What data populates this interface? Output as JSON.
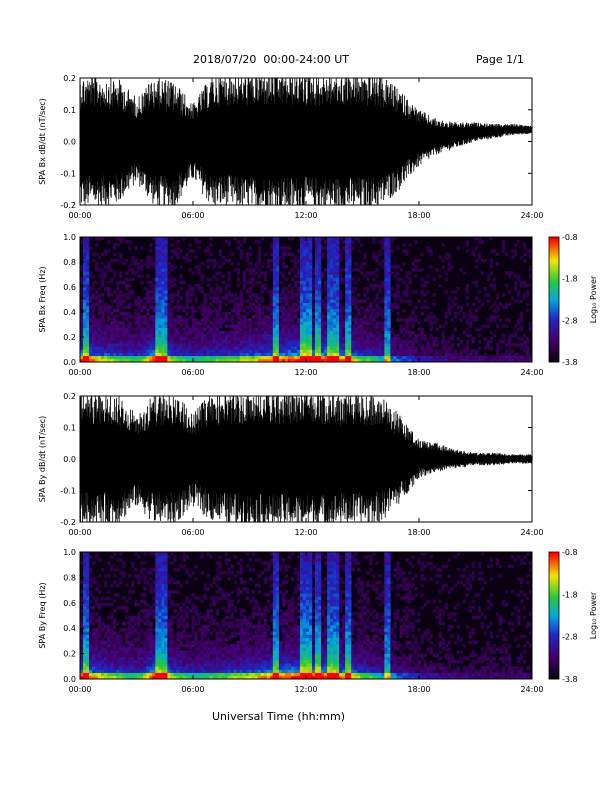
{
  "header": {
    "title": "2018/07/20  00:00-24:00 UT",
    "page": "Page 1/1"
  },
  "footer": {
    "xlabel": "Universal Time (hh:mm)"
  },
  "chart_data": [
    {
      "type": "line",
      "ylabel": "SPA Bx dB/dt (nT/sec)",
      "xlim": [
        0,
        24
      ],
      "ylim": [
        -0.2,
        0.2
      ],
      "x_ticks": [
        "00:00",
        "06:00",
        "12:00",
        "18:00",
        "24:00"
      ],
      "y_ticks": [
        "-0.2",
        "-0.1",
        "0.0",
        "0.1",
        "0.2"
      ],
      "series": [
        {
          "x_hours": [
            0,
            1,
            2,
            3,
            4,
            5,
            6,
            7,
            8,
            9,
            10,
            11,
            12,
            13,
            14,
            15,
            16,
            17,
            18,
            19,
            20,
            21,
            22,
            23,
            24
          ],
          "min": [
            -0.21,
            -0.21,
            -0.2,
            -0.13,
            -0.21,
            -0.21,
            -0.12,
            -0.21,
            -0.21,
            -0.22,
            -0.22,
            -0.22,
            -0.22,
            -0.22,
            -0.22,
            -0.22,
            -0.21,
            -0.15,
            -0.08,
            -0.04,
            -0.02,
            0.0,
            0.01,
            0.02,
            0.025
          ],
          "max": [
            0.21,
            0.21,
            0.2,
            0.14,
            0.21,
            0.19,
            0.12,
            0.21,
            0.22,
            0.22,
            0.22,
            0.22,
            0.22,
            0.22,
            0.22,
            0.22,
            0.21,
            0.16,
            0.1,
            0.07,
            0.06,
            0.06,
            0.055,
            0.055,
            0.05
          ]
        }
      ]
    },
    {
      "type": "heatmap",
      "ylabel": "SPA Bx Freq (Hz)",
      "xlim": [
        0,
        24
      ],
      "ylim": [
        0,
        1.0
      ],
      "x_ticks": [
        "00:00",
        "06:00",
        "12:00",
        "18:00",
        "24:00"
      ],
      "y_ticks": [
        "0.0",
        "0.2",
        "0.4",
        "0.6",
        "0.8",
        "1.0"
      ],
      "colorbar": {
        "label": "Log₁₀ Power",
        "range": [
          -3.8,
          -0.8
        ],
        "ticks": [
          "-0.8",
          "-1.8",
          "-2.8",
          "-3.8"
        ]
      },
      "activity_x_hours": [
        0,
        1,
        2,
        3,
        4,
        5,
        6,
        7,
        8,
        9,
        10,
        11,
        12,
        13,
        14,
        15,
        16,
        17,
        18,
        19,
        20,
        21,
        22,
        23,
        24
      ],
      "activity": [
        0.8,
        0.65,
        0.55,
        0.45,
        0.8,
        0.55,
        0.45,
        0.5,
        0.55,
        0.6,
        0.7,
        0.75,
        0.85,
        0.8,
        0.7,
        0.55,
        0.4,
        0.3,
        0.2,
        0.15,
        0.12,
        0.1,
        0.1,
        0.1,
        0.1
      ],
      "bright_bands_hours": [
        0.3,
        4.1,
        4.5,
        10.4,
        11.8,
        12.1,
        12.6,
        13.3,
        13.6,
        14.2,
        16.3
      ]
    },
    {
      "type": "line",
      "ylabel": "SPA By dB/dt (nT/sec)",
      "xlim": [
        0,
        24
      ],
      "ylim": [
        -0.2,
        0.2
      ],
      "x_ticks": [
        "00:00",
        "06:00",
        "12:00",
        "18:00",
        "24:00"
      ],
      "y_ticks": [
        "-0.2",
        "-0.1",
        "0.0",
        "0.1",
        "0.2"
      ],
      "series": [
        {
          "x_hours": [
            0,
            1,
            2,
            3,
            4,
            5,
            6,
            7,
            8,
            9,
            10,
            11,
            12,
            13,
            14,
            15,
            16,
            17,
            18,
            19,
            20,
            21,
            22,
            23,
            24
          ],
          "min": [
            -0.21,
            -0.21,
            -0.21,
            -0.15,
            -0.21,
            -0.21,
            -0.15,
            -0.2,
            -0.21,
            -0.22,
            -0.22,
            -0.22,
            -0.22,
            -0.22,
            -0.21,
            -0.21,
            -0.2,
            -0.14,
            -0.06,
            -0.04,
            -0.03,
            -0.02,
            -0.02,
            -0.015,
            -0.015
          ],
          "max": [
            0.21,
            0.21,
            0.21,
            0.15,
            0.21,
            0.21,
            0.15,
            0.21,
            0.21,
            0.22,
            0.22,
            0.22,
            0.22,
            0.22,
            0.21,
            0.21,
            0.2,
            0.14,
            0.06,
            0.05,
            0.03,
            0.02,
            0.02,
            0.015,
            0.015
          ]
        }
      ]
    },
    {
      "type": "heatmap",
      "ylabel": "SPA By Freq (Hz)",
      "xlim": [
        0,
        24
      ],
      "ylim": [
        0,
        1.0
      ],
      "x_ticks": [
        "00:00",
        "06:00",
        "12:00",
        "18:00",
        "24:00"
      ],
      "y_ticks": [
        "0.0",
        "0.2",
        "0.4",
        "0.6",
        "0.8",
        "1.0"
      ],
      "colorbar": {
        "label": "Log₁₀ Power",
        "range": [
          -3.8,
          -0.8
        ],
        "ticks": [
          "-0.8",
          "-1.8",
          "-2.8",
          "-3.8"
        ]
      },
      "activity_x_hours": [
        0,
        1,
        2,
        3,
        4,
        5,
        6,
        7,
        8,
        9,
        10,
        11,
        12,
        13,
        14,
        15,
        16,
        17,
        18,
        19,
        20,
        21,
        22,
        23,
        24
      ],
      "activity": [
        0.8,
        0.65,
        0.55,
        0.45,
        0.8,
        0.55,
        0.45,
        0.5,
        0.55,
        0.6,
        0.7,
        0.75,
        0.85,
        0.8,
        0.7,
        0.55,
        0.4,
        0.3,
        0.2,
        0.15,
        0.12,
        0.1,
        0.1,
        0.1,
        0.1
      ],
      "bright_bands_hours": [
        0.3,
        4.1,
        4.5,
        10.4,
        11.8,
        12.1,
        12.6,
        13.3,
        13.6,
        14.2,
        16.3
      ]
    }
  ]
}
